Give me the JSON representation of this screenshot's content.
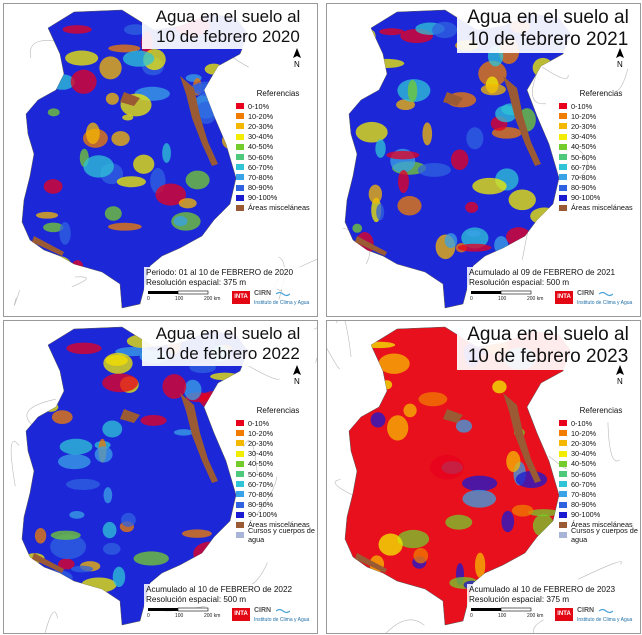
{
  "panels": [
    {
      "title_line1": "Agua en el suelo al",
      "title_line2": "10 de febrero 2020",
      "legend_title": "Referencias",
      "legend": [
        "0-10%",
        "10-20%",
        "20-30%",
        "30-40%",
        "40-50%",
        "50-60%",
        "60-70%",
        "70-80%",
        "80-90%",
        "90-100%",
        "Áreas misceláneas"
      ],
      "caption_line1": "Periodo: 01 al 10 de FEBRERO de 2020",
      "caption_line2": "Resolución espacial: 375 m",
      "dominant": "blue"
    },
    {
      "title_line1": "Agua en el suelo al",
      "title_line2": "10 de febrero 2021",
      "legend_title": "Referencias",
      "legend": [
        "0-10%",
        "10-20%",
        "20-30%",
        "30-40%",
        "40-50%",
        "50-60%",
        "60-70%",
        "70-80%",
        "80-90%",
        "90-100%",
        "Áreas misceláneas"
      ],
      "caption_line1": "Acumulado al 09 de FEBRERO de 2021",
      "caption_line2": "Resolución espacial: 500 m",
      "dominant": "blue"
    },
    {
      "title_line1": "Agua en el suelo al",
      "title_line2": "10 de febrero 2022",
      "legend_title": "Referencias",
      "legend": [
        "0-10%",
        "10-20%",
        "20-30%",
        "30-40%",
        "40-50%",
        "50-60%",
        "60-70%",
        "70-80%",
        "80-90%",
        "90-100%",
        "Áreas misceláneas",
        "Cursos y cuerpos de agua"
      ],
      "caption_line1": "Acumulado al 10 de FEBRERO de 2022",
      "caption_line2": "Resolución espacial: 500 m",
      "dominant": "blue"
    },
    {
      "title_line1": "Agua en el suelo al",
      "title_line2": "10 de febrero 2023",
      "legend_title": "Referencias",
      "legend": [
        "0-10%",
        "10-20%",
        "20-30%",
        "30-40%",
        "40-50%",
        "50-60%",
        "60-70%",
        "70-80%",
        "80-90%",
        "90-100%",
        "Áreas misceláneas",
        "Cursos y cuerpos de agua"
      ],
      "caption_line1": "Acumulado al 10 de FEBRERO de 2023",
      "caption_line2": "Resolución espacial: 375 m",
      "dominant": "red"
    }
  ],
  "legend_colors": [
    "#e8001c",
    "#f07c00",
    "#f5b800",
    "#f2ec00",
    "#74cc2c",
    "#4ec87a",
    "#2fc4d6",
    "#3aa2e6",
    "#2f62e0",
    "#1a1ad0",
    "#9a5a34",
    "#a8b4d8"
  ],
  "north_letter": "N",
  "scale": [
    "0",
    "100",
    "200 km"
  ],
  "logo": {
    "inta": "INTA",
    "cirn": "CIRN",
    "institute": "Instituto de Clima y Agua"
  }
}
